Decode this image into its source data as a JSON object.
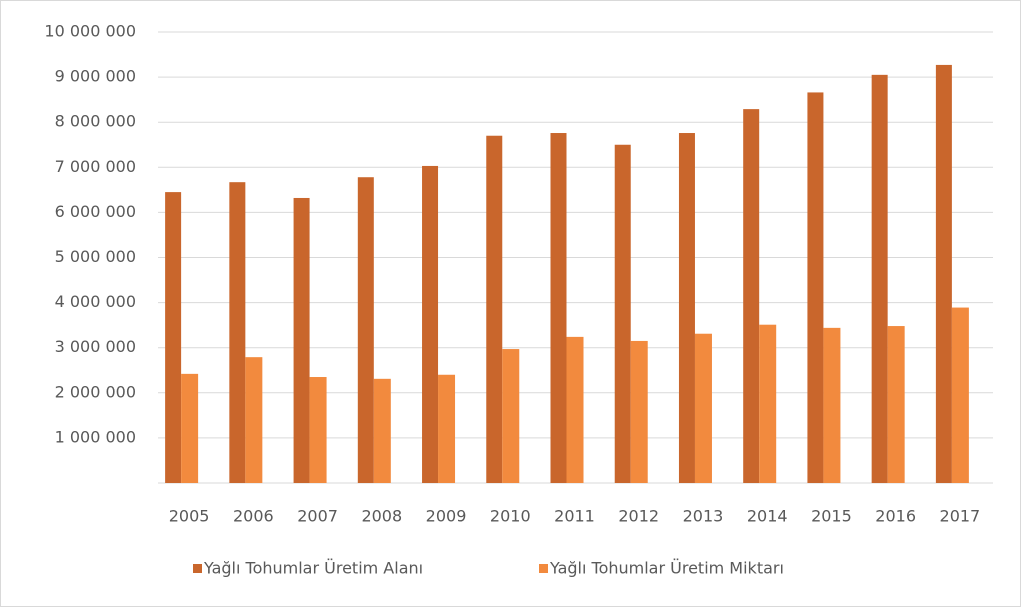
{
  "chart_data": {
    "type": "bar",
    "categories": [
      "2005",
      "2006",
      "2007",
      "2008",
      "2009",
      "2010",
      "2011",
      "2012",
      "2013",
      "2014",
      "2015",
      "2016",
      "2017"
    ],
    "series": [
      {
        "name": "Yağlı Tohumlar Üretim Alanı",
        "color": "#c9662c",
        "values": [
          6450000,
          6670000,
          6320000,
          6780000,
          7030000,
          7700000,
          7760000,
          7500000,
          7760000,
          8290000,
          8660000,
          9050000,
          9270000
        ]
      },
      {
        "name": "Yağlı Tohumlar Üretim Miktarı",
        "color": "#f28a3e",
        "values": [
          2420000,
          2790000,
          2350000,
          2310000,
          2400000,
          2970000,
          3240000,
          3150000,
          3310000,
          3510000,
          3440000,
          3480000,
          3890000
        ]
      }
    ],
    "ylim": [
      0,
      10000000
    ],
    "yticks": [
      {
        "value": 1000000,
        "label": "1 000 000"
      },
      {
        "value": 2000000,
        "label": "2 000 000"
      },
      {
        "value": 3000000,
        "label": "3 000 000"
      },
      {
        "value": 4000000,
        "label": "4 000 000"
      },
      {
        "value": 5000000,
        "label": "5 000 000"
      },
      {
        "value": 6000000,
        "label": "6 000 000"
      },
      {
        "value": 7000000,
        "label": "7 000 000"
      },
      {
        "value": 8000000,
        "label": "8 000 000"
      },
      {
        "value": 9000000,
        "label": "9 000 000"
      },
      {
        "value": 10000000,
        "label": "10 000 000"
      }
    ],
    "grid": true,
    "legend": "bottom"
  }
}
